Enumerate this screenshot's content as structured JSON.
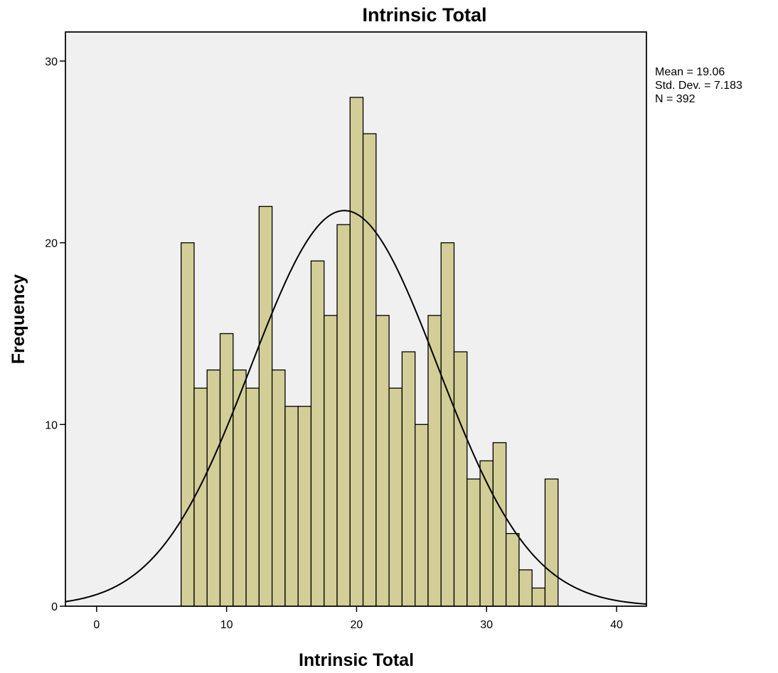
{
  "chart_data": {
    "type": "bar",
    "title": "Intrinsic Total",
    "xlabel": "Intrinsic Total",
    "ylabel": "Frequency",
    "xlim": [
      -2.4,
      42.3
    ],
    "ylim": [
      0,
      31.6
    ],
    "x_ticks": [
      "0",
      "10",
      "20",
      "30",
      "40"
    ],
    "y_ticks": [
      "0",
      "10",
      "20",
      "30"
    ],
    "bin_width": 1,
    "bins": [
      {
        "x": 7,
        "count": 20
      },
      {
        "x": 8,
        "count": 12
      },
      {
        "x": 9,
        "count": 13
      },
      {
        "x": 10,
        "count": 15
      },
      {
        "x": 11,
        "count": 13
      },
      {
        "x": 12,
        "count": 12
      },
      {
        "x": 13,
        "count": 22
      },
      {
        "x": 14,
        "count": 13
      },
      {
        "x": 15,
        "count": 11
      },
      {
        "x": 16,
        "count": 11
      },
      {
        "x": 17,
        "count": 19
      },
      {
        "x": 18,
        "count": 16
      },
      {
        "x": 19,
        "count": 21
      },
      {
        "x": 20,
        "count": 28
      },
      {
        "x": 21,
        "count": 26
      },
      {
        "x": 22,
        "count": 16
      },
      {
        "x": 23,
        "count": 12
      },
      {
        "x": 24,
        "count": 14
      },
      {
        "x": 25,
        "count": 10
      },
      {
        "x": 26,
        "count": 16
      },
      {
        "x": 27,
        "count": 20
      },
      {
        "x": 28,
        "count": 14
      },
      {
        "x": 29,
        "count": 7
      },
      {
        "x": 30,
        "count": 8
      },
      {
        "x": 31,
        "count": 9
      },
      {
        "x": 32,
        "count": 4
      },
      {
        "x": 33,
        "count": 2
      },
      {
        "x": 34,
        "count": 1
      },
      {
        "x": 35,
        "count": 7
      }
    ],
    "normal_curve": {
      "mean": 19.06,
      "sd": 7.183,
      "n": 392
    },
    "stats_text": [
      "Mean = 19.06",
      "Std. Dev. = 7.183",
      "N = 392"
    ],
    "grid": false,
    "colors": {
      "plot_background": "#f0f0f0",
      "bar_fill": "#d3ce97",
      "bar_stroke": "#000000",
      "curve": "#000000",
      "frame": "#000000"
    }
  }
}
